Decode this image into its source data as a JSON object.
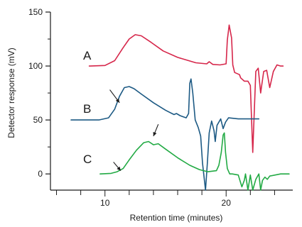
{
  "chart_data": {
    "type": "line",
    "xlabel": "Retention time (minutes)",
    "ylabel": "Detector response (mV)",
    "xlim": [
      5.5,
      25.5
    ],
    "ylim": [
      -15,
      150
    ],
    "x_ticks_major": [
      10,
      20
    ],
    "x_ticks_minor": [
      6,
      8,
      10,
      12,
      14,
      16,
      18,
      20,
      22,
      24
    ],
    "y_ticks": [
      0,
      50,
      100,
      150
    ],
    "y_ticks_minor": [
      25,
      75,
      125
    ],
    "grid": false,
    "series": [
      {
        "name": "A",
        "color": "#d6264a",
        "points": [
          [
            8.7,
            100
          ],
          [
            10.0,
            100.5
          ],
          [
            10.8,
            105
          ],
          [
            11.5,
            117
          ],
          [
            12.0,
            125
          ],
          [
            12.5,
            129
          ],
          [
            13.0,
            128
          ],
          [
            13.8,
            122
          ],
          [
            14.8,
            114
          ],
          [
            16.0,
            108
          ],
          [
            17.5,
            103
          ],
          [
            18.4,
            102
          ],
          [
            18.6,
            104
          ],
          [
            18.9,
            101.5
          ],
          [
            19.5,
            101
          ],
          [
            20.0,
            102
          ],
          [
            20.1,
            124
          ],
          [
            20.25,
            138
          ],
          [
            20.45,
            126
          ],
          [
            20.55,
            101
          ],
          [
            20.7,
            94
          ],
          [
            21.1,
            92
          ],
          [
            21.2,
            89
          ],
          [
            21.5,
            86
          ],
          [
            21.8,
            86
          ],
          [
            22.0,
            82
          ],
          [
            22.2,
            20
          ],
          [
            22.3,
            50
          ],
          [
            22.45,
            95
          ],
          [
            22.65,
            98
          ],
          [
            22.85,
            75
          ],
          [
            23.1,
            95
          ],
          [
            23.35,
            96
          ],
          [
            23.6,
            80
          ],
          [
            23.9,
            95
          ],
          [
            24.2,
            101
          ],
          [
            24.5,
            100
          ],
          [
            24.7,
            100
          ]
        ]
      },
      {
        "name": "B",
        "color": "#1d5a84",
        "points": [
          [
            7.2,
            50
          ],
          [
            9.5,
            50
          ],
          [
            10.3,
            52
          ],
          [
            10.8,
            60
          ],
          [
            11.2,
            72
          ],
          [
            11.6,
            80
          ],
          [
            12.0,
            81
          ],
          [
            12.4,
            79
          ],
          [
            13.0,
            74
          ],
          [
            14.0,
            66
          ],
          [
            15.0,
            59
          ],
          [
            15.7,
            55
          ],
          [
            15.9,
            56
          ],
          [
            16.2,
            54
          ],
          [
            16.7,
            52
          ],
          [
            16.9,
            56
          ],
          [
            17.0,
            84
          ],
          [
            17.1,
            88
          ],
          [
            17.25,
            75
          ],
          [
            17.45,
            50
          ],
          [
            17.7,
            43
          ],
          [
            17.9,
            35
          ],
          [
            18.05,
            10
          ],
          [
            18.3,
            -15
          ],
          [
            18.45,
            10
          ],
          [
            18.6,
            38
          ],
          [
            18.8,
            49
          ],
          [
            19.0,
            40
          ],
          [
            19.1,
            30
          ],
          [
            19.25,
            45
          ],
          [
            19.55,
            51
          ],
          [
            19.75,
            42
          ],
          [
            19.95,
            48
          ],
          [
            20.2,
            52
          ],
          [
            21.0,
            51
          ],
          [
            21.9,
            51
          ],
          [
            22.7,
            51
          ]
        ]
      },
      {
        "name": "C",
        "color": "#22aa44",
        "points": [
          [
            9.6,
            0
          ],
          [
            10.5,
            0.5
          ],
          [
            11.0,
            2
          ],
          [
            11.5,
            5
          ],
          [
            12.0,
            13
          ],
          [
            12.6,
            22
          ],
          [
            13.2,
            29
          ],
          [
            13.6,
            30
          ],
          [
            14.0,
            27
          ],
          [
            14.4,
            28
          ],
          [
            15.0,
            23
          ],
          [
            16.0,
            15
          ],
          [
            17.0,
            8
          ],
          [
            17.8,
            4
          ],
          [
            18.5,
            2
          ],
          [
            19.2,
            3
          ],
          [
            19.4,
            8
          ],
          [
            19.6,
            20
          ],
          [
            19.75,
            36
          ],
          [
            19.85,
            38
          ],
          [
            19.95,
            20
          ],
          [
            20.1,
            5
          ],
          [
            20.3,
            0
          ],
          [
            20.5,
            0
          ],
          [
            21.0,
            -1
          ],
          [
            21.3,
            -12
          ],
          [
            21.5,
            -6
          ],
          [
            21.6,
            0
          ],
          [
            21.8,
            -15
          ],
          [
            22.0,
            -1
          ],
          [
            22.2,
            -15
          ],
          [
            22.45,
            -5
          ],
          [
            22.7,
            0
          ],
          [
            22.85,
            -15
          ],
          [
            23.0,
            -6
          ],
          [
            23.2,
            -3
          ],
          [
            23.4,
            -5
          ],
          [
            23.6,
            -2
          ],
          [
            24.5,
            0
          ],
          [
            25.2,
            0
          ]
        ]
      }
    ],
    "annotations": [
      {
        "type": "arrow",
        "from": [
          10.4,
          78
        ],
        "to": [
          11.2,
          66
        ]
      },
      {
        "type": "arrow",
        "from": [
          10.7,
          11
        ],
        "to": [
          11.3,
          3
        ]
      },
      {
        "type": "arrow",
        "from": [
          14.4,
          46
        ],
        "to": [
          14.0,
          35
        ]
      }
    ]
  }
}
